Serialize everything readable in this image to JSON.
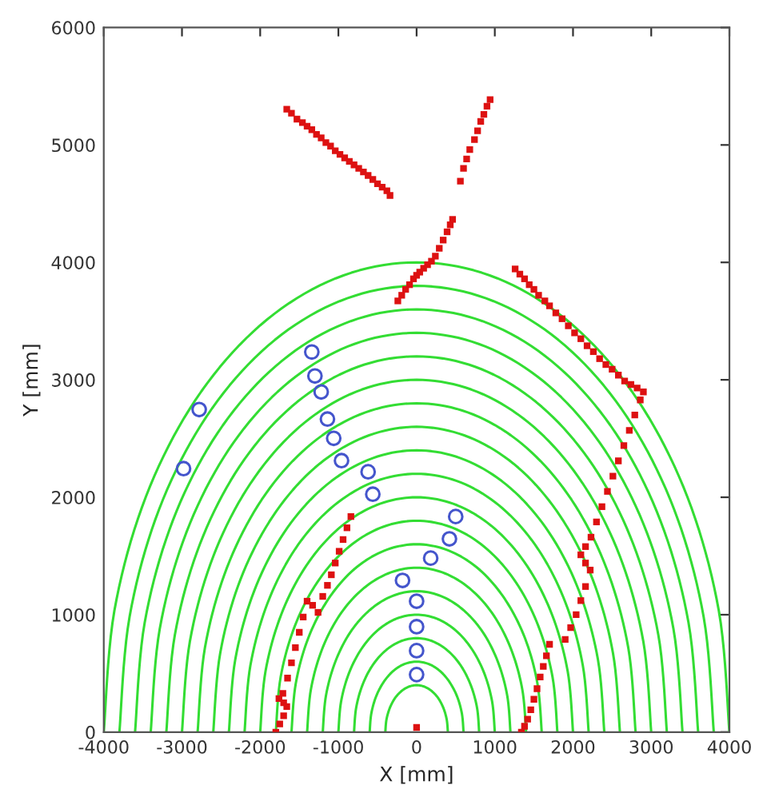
{
  "chart_data": {
    "type": "scatter",
    "xlabel": "X [mm]",
    "ylabel": "Y [mm]",
    "xlim": [
      -4000,
      4000
    ],
    "xticks": [
      -4000,
      -3000,
      -2000,
      -1000,
      0,
      1000,
      2000,
      3000,
      4000
    ],
    "ylim": [
      0,
      6000
    ],
    "yticks": [
      0,
      1000,
      2000,
      3000,
      4000,
      5000,
      6000
    ],
    "series": [
      {
        "type": "line",
        "color": "#33dd33",
        "x": [
          400,
          386,
          346,
          283,
          200,
          104,
          0,
          -104,
          -200,
          -283,
          -346,
          -386,
          -400
        ],
        "values": [
          0,
          104,
          200,
          283,
          346,
          386,
          400,
          386,
          346,
          283,
          200,
          104,
          0
        ]
      },
      {
        "type": "line",
        "color": "#33dd33",
        "x": [
          600,
          580,
          520,
          424,
          300,
          155,
          0,
          -155,
          -300,
          -424,
          -520,
          -580,
          -600
        ],
        "values": [
          0,
          155,
          300,
          424,
          520,
          580,
          600,
          580,
          520,
          424,
          300,
          155,
          0
        ]
      },
      {
        "type": "line",
        "color": "#33dd33",
        "x": [
          800,
          773,
          693,
          566,
          400,
          207,
          0,
          -207,
          -400,
          -566,
          -693,
          -773,
          -800
        ],
        "values": [
          0,
          207,
          400,
          566,
          693,
          773,
          800,
          773,
          693,
          566,
          400,
          207,
          0
        ]
      },
      {
        "type": "line",
        "color": "#33dd33",
        "x": [
          1000,
          966,
          866,
          707,
          500,
          259,
          0,
          -259,
          -500,
          -707,
          -866,
          -966,
          -1000
        ],
        "values": [
          0,
          259,
          500,
          707,
          866,
          966,
          1000,
          966,
          866,
          707,
          500,
          259,
          0
        ]
      },
      {
        "type": "line",
        "color": "#33dd33",
        "x": [
          1200,
          1159,
          1039,
          849,
          600,
          311,
          0,
          -311,
          -600,
          -849,
          -1039,
          -1159,
          -1200
        ],
        "values": [
          0,
          311,
          600,
          849,
          1039,
          1159,
          1200,
          1159,
          1039,
          849,
          600,
          311,
          0
        ]
      },
      {
        "type": "line",
        "color": "#33dd33",
        "x": [
          1400,
          1352,
          1212,
          990,
          700,
          362,
          0,
          -362,
          -700,
          -990,
          -1212,
          -1352,
          -1400
        ],
        "values": [
          0,
          362,
          700,
          990,
          1212,
          1352,
          1400,
          1352,
          1212,
          990,
          700,
          362,
          0
        ]
      },
      {
        "type": "line",
        "color": "#33dd33",
        "x": [
          1600,
          1545,
          1386,
          1131,
          800,
          414,
          0,
          -414,
          -800,
          -1131,
          -1386,
          -1545,
          -1600
        ],
        "values": [
          0,
          414,
          800,
          1131,
          1386,
          1545,
          1600,
          1545,
          1386,
          1131,
          800,
          414,
          0
        ]
      },
      {
        "type": "line",
        "color": "#33dd33",
        "x": [
          1800,
          1739,
          1559,
          1273,
          900,
          466,
          0,
          -466,
          -900,
          -1273,
          -1559,
          -1739,
          -1800
        ],
        "values": [
          0,
          466,
          900,
          1273,
          1559,
          1739,
          1800,
          1739,
          1559,
          1273,
          900,
          466,
          0
        ]
      },
      {
        "type": "line",
        "color": "#33dd33",
        "x": [
          2000,
          1932,
          1732,
          1414,
          1000,
          518,
          0,
          -518,
          -1000,
          -1414,
          -1732,
          -1932,
          -2000
        ],
        "values": [
          0,
          518,
          1000,
          1414,
          1732,
          1932,
          2000,
          1932,
          1732,
          1414,
          1000,
          518,
          0
        ]
      },
      {
        "type": "line",
        "color": "#33dd33",
        "x": [
          2200,
          2125,
          1905,
          1556,
          1100,
          569,
          0,
          -569,
          -1100,
          -1556,
          -1905,
          -2125,
          -2200
        ],
        "values": [
          0,
          569,
          1100,
          1556,
          1905,
          2125,
          2200,
          2125,
          1905,
          1556,
          1100,
          569,
          0
        ]
      },
      {
        "type": "line",
        "color": "#33dd33",
        "x": [
          2400,
          2318,
          2078,
          1697,
          1200,
          621,
          0,
          -621,
          -1200,
          -1697,
          -2078,
          -2318,
          -2400
        ],
        "values": [
          0,
          621,
          1200,
          1697,
          2078,
          2318,
          2400,
          2318,
          2078,
          1697,
          1200,
          621,
          0
        ]
      },
      {
        "type": "line",
        "color": "#33dd33",
        "x": [
          2600,
          2511,
          2252,
          1838,
          1300,
          673,
          0,
          -673,
          -1300,
          -1838,
          -2252,
          -2511,
          -2600
        ],
        "values": [
          0,
          673,
          1300,
          1838,
          2252,
          2511,
          2600,
          2511,
          2252,
          1838,
          1300,
          673,
          0
        ]
      },
      {
        "type": "line",
        "color": "#33dd33",
        "x": [
          2800,
          2705,
          2425,
          1980,
          1400,
          725,
          0,
          -725,
          -1400,
          -1980,
          -2425,
          -2705,
          -2800
        ],
        "values": [
          0,
          725,
          1400,
          1980,
          2425,
          2705,
          2800,
          2705,
          2425,
          1980,
          1400,
          725,
          0
        ]
      },
      {
        "type": "line",
        "color": "#33dd33",
        "x": [
          3000,
          2898,
          2598,
          2121,
          1500,
          776,
          0,
          -776,
          -1500,
          -2121,
          -2598,
          -2898,
          -3000
        ],
        "values": [
          0,
          776,
          1500,
          2121,
          2598,
          2898,
          3000,
          2898,
          2598,
          2121,
          1500,
          776,
          0
        ]
      },
      {
        "type": "line",
        "color": "#33dd33",
        "x": [
          3200,
          3091,
          2771,
          2263,
          1600,
          828,
          0,
          -828,
          -1600,
          -2263,
          -2771,
          -3091,
          -3200
        ],
        "values": [
          0,
          828,
          1600,
          2263,
          2771,
          3091,
          3200,
          3091,
          2771,
          2263,
          1600,
          828,
          0
        ]
      },
      {
        "type": "line",
        "color": "#33dd33",
        "x": [
          3400,
          3284,
          2944,
          2404,
          1700,
          880,
          0,
          -880,
          -1700,
          -2404,
          -2944,
          -3284,
          -3400
        ],
        "values": [
          0,
          880,
          1700,
          2404,
          2944,
          3284,
          3400,
          3284,
          2944,
          2404,
          1700,
          880,
          0
        ]
      },
      {
        "type": "line",
        "color": "#33dd33",
        "x": [
          3600,
          3477,
          3118,
          2546,
          1800,
          932,
          0,
          -932,
          -1800,
          -2546,
          -3118,
          -3477,
          -3600
        ],
        "values": [
          0,
          932,
          1800,
          2546,
          3118,
          3477,
          3600,
          3477,
          3118,
          2546,
          1800,
          932,
          0
        ]
      },
      {
        "type": "line",
        "color": "#33dd33",
        "x": [
          3800,
          3670,
          3291,
          2687,
          1900,
          983,
          0,
          -983,
          -1900,
          -2687,
          -3291,
          -3670,
          -3800
        ],
        "values": [
          0,
          983,
          1900,
          2687,
          3291,
          3670,
          3800,
          3670,
          3291,
          2687,
          1900,
          983,
          0
        ]
      },
      {
        "type": "line",
        "color": "#33dd33",
        "x": [
          4000,
          3864,
          3464,
          2828,
          2000,
          1035,
          0,
          -1035,
          -2000,
          -2828,
          -3464,
          -3864,
          -4000
        ],
        "values": [
          0,
          1035,
          2000,
          2828,
          3464,
          3864,
          4000,
          3864,
          3464,
          2828,
          2000,
          1035,
          0
        ]
      },
      {
        "marker": "square",
        "color": "#dd1111",
        "x": [
          -1660,
          -1600,
          -1530,
          -1460,
          -1400,
          -1340,
          -1280,
          -1220,
          -1160,
          -1100,
          -1040,
          -980,
          -920,
          -860,
          -800,
          -740,
          -680,
          -620,
          -560,
          -500,
          -440,
          -380,
          -340,
          -240,
          -190,
          -140,
          -90,
          -40,
          0,
          40,
          90,
          140,
          190,
          240,
          290,
          340,
          390,
          430,
          460,
          560,
          600,
          640,
          680,
          740,
          780,
          820,
          860,
          900,
          940,
          1260,
          1320,
          1380,
          1440,
          1500,
          1560,
          1640,
          1700,
          1780,
          1860,
          1940,
          2020,
          2100,
          2180,
          2260,
          2340,
          2420,
          2500,
          2580,
          2660,
          2740,
          2820,
          2900,
          2860,
          2790,
          2720,
          2650,
          2580,
          2510,
          2440,
          2370,
          2300,
          2230,
          2160,
          2100,
          2160,
          2220,
          2160,
          2100,
          2040,
          1970,
          1900,
          1700,
          1660,
          1620,
          1580,
          1540,
          1500,
          1460,
          1420,
          1380,
          1340,
          -840,
          -890,
          -940,
          -990,
          -1040,
          -1090,
          -1140,
          -1200,
          -1260,
          -1330,
          -1400,
          -1450,
          -1500,
          -1550,
          -1600,
          -1650,
          -1710,
          -1760,
          -1700,
          -1660,
          -1700,
          -1750,
          -1800,
          0
        ],
        "values": [
          5304,
          5270,
          5220,
          5190,
          5160,
          5130,
          5090,
          5060,
          5020,
          4990,
          4950,
          4920,
          4890,
          4860,
          4830,
          4800,
          4770,
          4740,
          4706,
          4670,
          4640,
          4610,
          4570,
          3672,
          3720,
          3770,
          3810,
          3860,
          3890,
          3917,
          3950,
          3980,
          4010,
          4053,
          4120,
          4190,
          4260,
          4320,
          4366,
          4692,
          4800,
          4880,
          4960,
          5046,
          5120,
          5200,
          5260,
          5330,
          5386,
          3944,
          3900,
          3860,
          3810,
          3770,
          3720,
          3672,
          3630,
          3570,
          3520,
          3460,
          3400,
          3350,
          3290,
          3240,
          3180,
          3130,
          3090,
          3040,
          2990,
          2960,
          2930,
          2897,
          2829,
          2700,
          2570,
          2440,
          2310,
          2180,
          2050,
          1920,
          1790,
          1660,
          1580,
          1510,
          1440,
          1380,
          1240,
          1120,
          1000,
          890,
          789,
          748,
          650,
          560,
          470,
          370,
          280,
          190,
          110,
          50,
          0,
          1836,
          1740,
          1640,
          1540,
          1440,
          1340,
          1250,
          1156,
          1020,
          1080,
          1115,
          980,
          850,
          720,
          590,
          460,
          330,
          286,
          250,
          218,
          140,
          70,
          0,
          40
        ]
      },
      {
        "marker": "circle",
        "color": "#4455cc",
        "x": [
          -2980,
          -2780,
          -1340,
          -1300,
          -1220,
          -1140,
          -1060,
          -960,
          -620,
          -560,
          500,
          420,
          180,
          -180,
          0,
          0,
          0,
          0
        ],
        "values": [
          2244,
          2747,
          3237,
          3033,
          2897,
          2666,
          2502,
          2312,
          2217,
          2026,
          1836,
          1646,
          1482,
          1292,
          1115,
          898,
          694,
          490
        ]
      }
    ]
  }
}
